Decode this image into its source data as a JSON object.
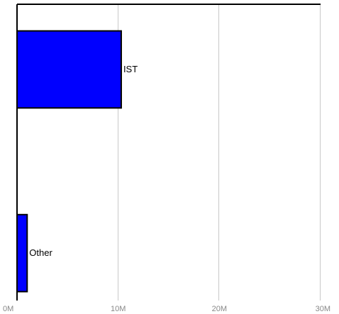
{
  "chart_data": {
    "type": "bar",
    "orientation": "horizontal",
    "categories": [
      "IST",
      "Other"
    ],
    "values": [
      10300000,
      1000000
    ],
    "xlim": [
      0,
      30000000
    ],
    "xticks": [
      0,
      10000000,
      20000000,
      30000000
    ],
    "xtick_labels": [
      "0M",
      "10M",
      "20M",
      "30M"
    ],
    "grid": true,
    "bar_color": "#0000ff",
    "bar_edge_color": "#000000",
    "grid_color": "#c8c8c8",
    "axis_color": "#000000"
  }
}
